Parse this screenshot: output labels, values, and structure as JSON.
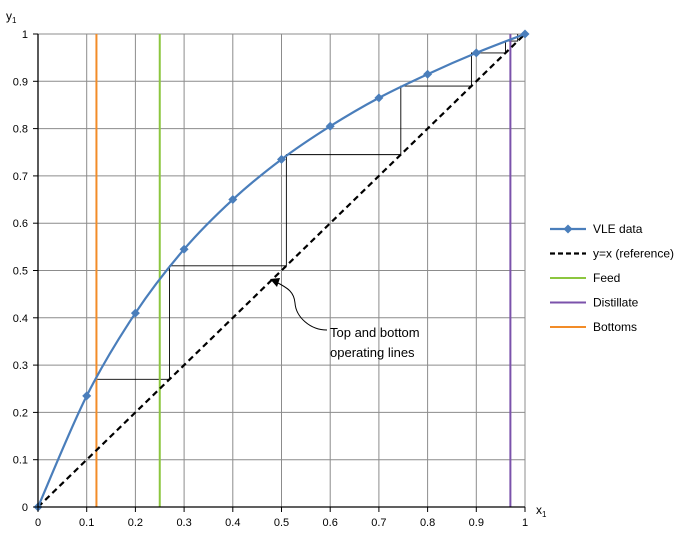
{
  "chart_data": {
    "type": "line",
    "xlabel": "x",
    "xlabel_sub": "1",
    "ylabel": "y",
    "ylabel_sub": "1",
    "xlim": [
      0,
      1
    ],
    "ylim": [
      0,
      1
    ],
    "xticks": [
      "0",
      "0.1",
      "0.2",
      "0.3",
      "0.4",
      "0.5",
      "0.6",
      "0.7",
      "0.8",
      "0.9",
      "1"
    ],
    "yticks": [
      "0",
      "0.1",
      "0.2",
      "0.3",
      "0.4",
      "0.5",
      "0.6",
      "0.7",
      "0.8",
      "0.9",
      "1"
    ],
    "grid": true,
    "legend_position": "right",
    "series": [
      {
        "name": "VLE data",
        "kind": "line-with-markers",
        "color": "#4a7ebb",
        "marker": "diamond",
        "x": [
          0,
          0.1,
          0.2,
          0.3,
          0.4,
          0.5,
          0.6,
          0.7,
          0.8,
          0.9,
          1
        ],
        "y": [
          0,
          0.235,
          0.41,
          0.545,
          0.65,
          0.735,
          0.805,
          0.865,
          0.915,
          0.96,
          1
        ]
      },
      {
        "name": "y=x (reference)",
        "kind": "dashed-line",
        "color": "#000000",
        "x": [
          0,
          1
        ],
        "y": [
          0,
          1
        ]
      },
      {
        "name": "Feed",
        "kind": "vertical-line",
        "color": "#8cc63f",
        "x": 0.25
      },
      {
        "name": "Distillate",
        "kind": "vertical-line",
        "color": "#7b52ab",
        "x": 0.97
      },
      {
        "name": "Bottoms",
        "kind": "vertical-line",
        "color": "#f28c28",
        "x": 0.12
      }
    ],
    "stages": [
      [
        0.12,
        0.12
      ],
      [
        0.12,
        0.27
      ],
      [
        0.27,
        0.27
      ],
      [
        0.27,
        0.51
      ],
      [
        0.51,
        0.51
      ],
      [
        0.51,
        0.745
      ],
      [
        0.745,
        0.745
      ],
      [
        0.745,
        0.89
      ],
      [
        0.89,
        0.89
      ],
      [
        0.89,
        0.96
      ],
      [
        0.96,
        0.96
      ],
      [
        0.96,
        0.985
      ],
      [
        0.985,
        0.985
      ],
      [
        0.985,
        1.0
      ]
    ],
    "legend_order": [
      "VLE data",
      "y=x (reference)",
      "Feed",
      "Distillate",
      "Bottoms"
    ],
    "annotation": {
      "lines": [
        "Top and bottom",
        "operating lines"
      ],
      "points_to": [
        0.475,
        0.475
      ]
    }
  }
}
